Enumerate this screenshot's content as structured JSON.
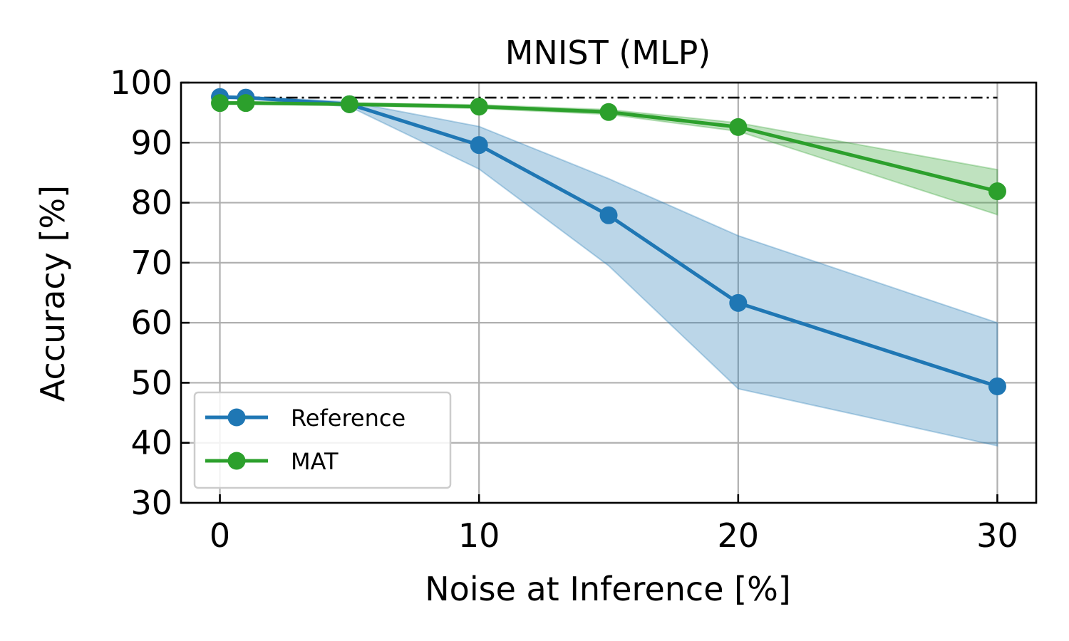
{
  "chart_data": {
    "type": "line",
    "title": "MNIST (MLP)",
    "xlabel": "Noise at Inference [%]",
    "ylabel": "Accuracy [%]",
    "xlim": [
      -1.5,
      31.5
    ],
    "ylim": [
      30,
      100
    ],
    "xticks": [
      0,
      10,
      20,
      30
    ],
    "yticks": [
      30,
      40,
      50,
      60,
      70,
      80,
      90,
      100
    ],
    "grid": true,
    "legend_position": "lower-left",
    "baseline": {
      "y": 97.5,
      "x_range": [
        0,
        30
      ],
      "style": "dash-dot",
      "color": "#000000"
    },
    "series": [
      {
        "name": "Reference",
        "color": "#1f77b4",
        "band_color": "#1f77b4",
        "x": [
          0,
          1,
          5,
          10,
          15,
          20,
          30
        ],
        "y": [
          97.6,
          97.5,
          96.4,
          89.6,
          77.9,
          63.3,
          49.4
        ],
        "lower": [
          97.4,
          97.3,
          96.0,
          85.6,
          69.5,
          49.0,
          39.5
        ],
        "upper": [
          97.8,
          97.7,
          96.8,
          92.7,
          84.0,
          74.5,
          60.0
        ]
      },
      {
        "name": "MAT",
        "color": "#2ca02c",
        "band_color": "#2ca02c",
        "x": [
          0,
          1,
          5,
          10,
          15,
          20,
          30
        ],
        "y": [
          96.6,
          96.6,
          96.4,
          96.0,
          95.1,
          92.6,
          81.9
        ],
        "lower": [
          96.4,
          96.4,
          96.2,
          95.7,
          94.7,
          91.9,
          78.0
        ],
        "upper": [
          96.8,
          96.8,
          96.6,
          96.3,
          95.5,
          93.3,
          85.5
        ]
      }
    ]
  }
}
